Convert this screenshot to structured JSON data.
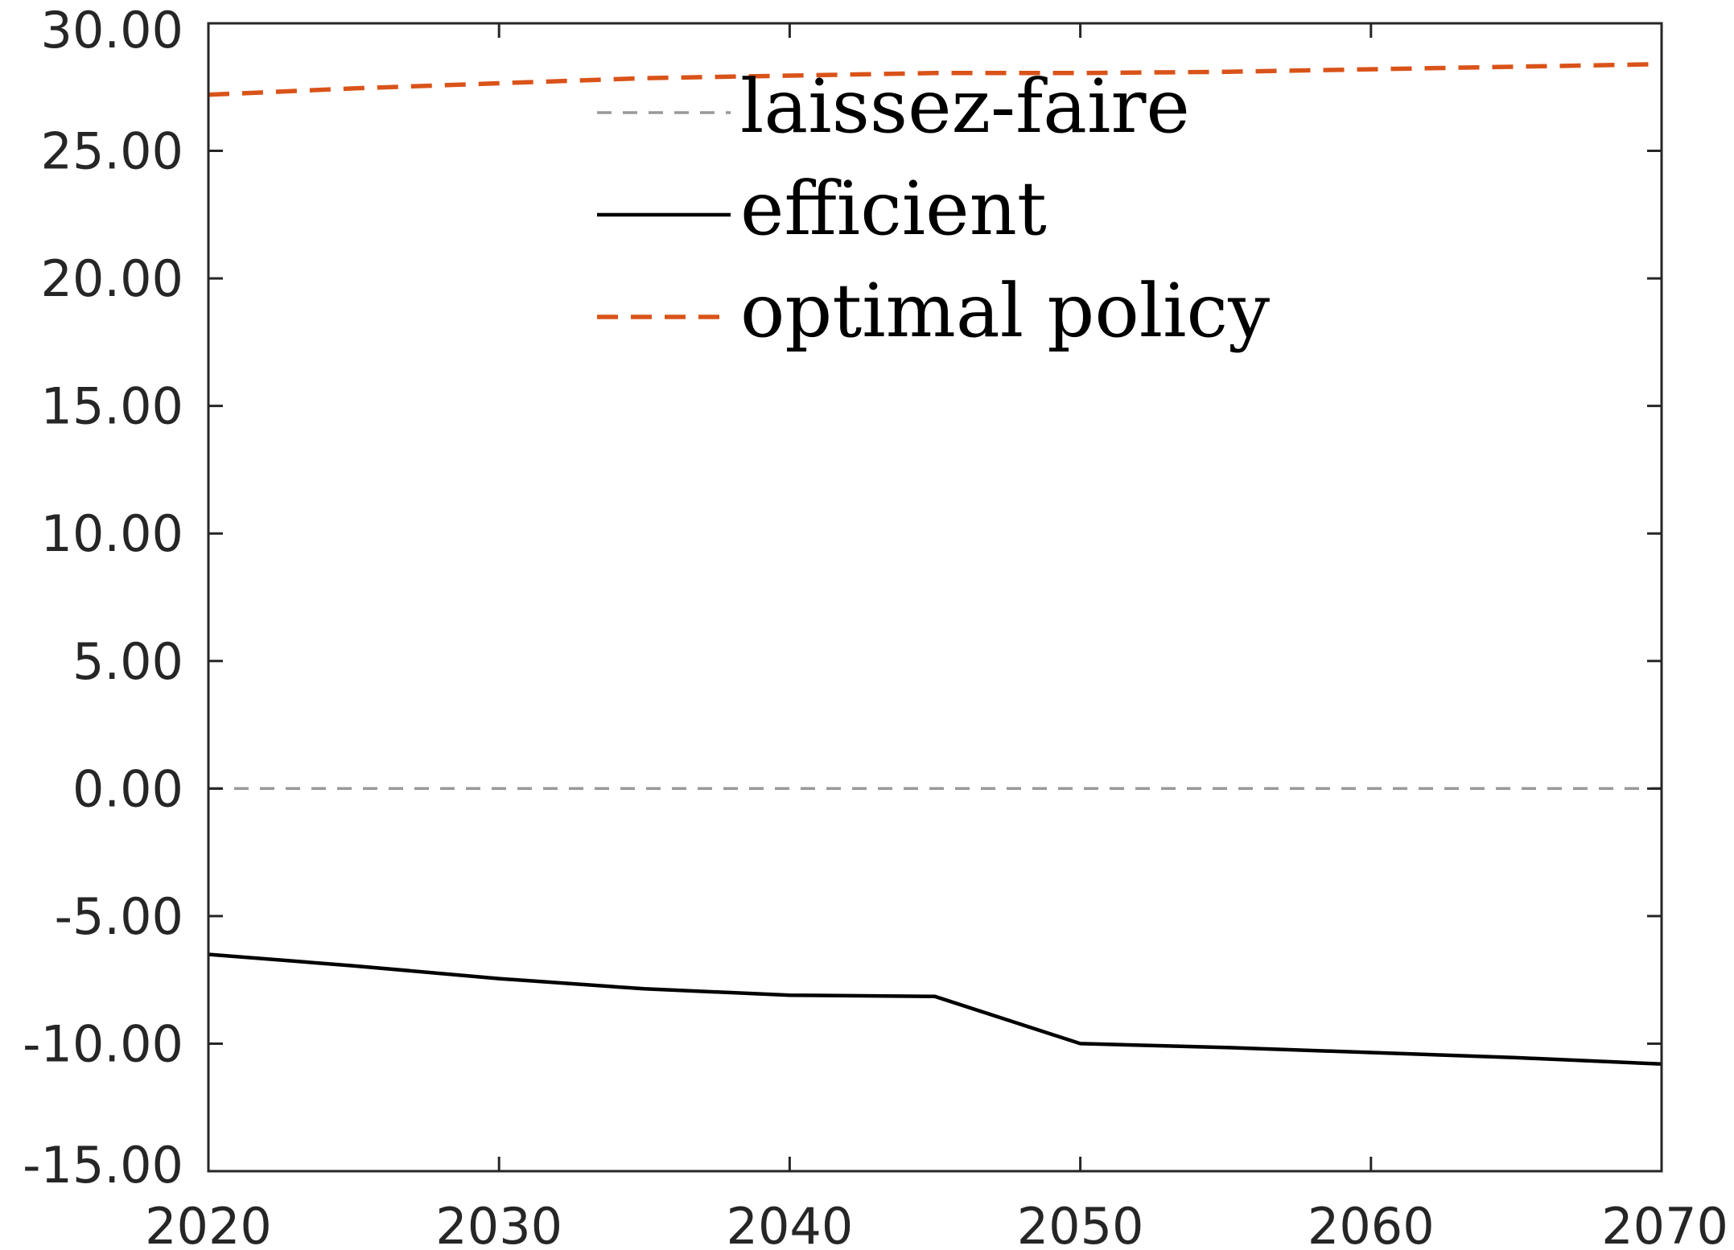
{
  "chart_data": {
    "type": "line",
    "x": [
      2020,
      2025,
      2030,
      2035,
      2040,
      2045,
      2050,
      2055,
      2060,
      2065,
      2070
    ],
    "series": [
      {
        "name": "laissez-faire",
        "values": [
          0.0,
          0.0,
          0.0,
          0.0,
          0.0,
          0.0,
          0.0,
          0.0,
          0.0,
          0.0,
          0.0
        ],
        "color": "#999999",
        "style": "dashed"
      },
      {
        "name": "efficient",
        "values": [
          -6.5,
          -6.95,
          -7.45,
          -7.85,
          -8.1,
          -8.15,
          -10.0,
          -10.15,
          -10.35,
          -10.55,
          -10.8
        ],
        "color": "#000000",
        "style": "solid"
      },
      {
        "name": "optimal policy",
        "values": [
          27.2,
          27.45,
          27.65,
          27.85,
          27.95,
          28.05,
          28.05,
          28.1,
          28.2,
          28.3,
          28.4
        ],
        "color": "#D95319",
        "style": "dashed"
      }
    ],
    "xlim": [
      2020,
      2070
    ],
    "ylim": [
      -15,
      30
    ],
    "xticks": [
      2020,
      2030,
      2040,
      2050,
      2060,
      2070
    ],
    "xtick_labels": [
      "2020",
      "2030",
      "2040",
      "2050",
      "2060",
      "2070"
    ],
    "yticks": [
      30,
      25,
      20,
      15,
      10,
      5,
      0,
      -5,
      -10,
      -15
    ],
    "ytick_labels": [
      "30.00",
      "25.00",
      "20.00",
      "15.00",
      "10.00",
      "5.00",
      "0.00",
      "-5.00",
      "-10.00",
      "-15.00"
    ],
    "legend_position": "top-center",
    "grid": false
  }
}
